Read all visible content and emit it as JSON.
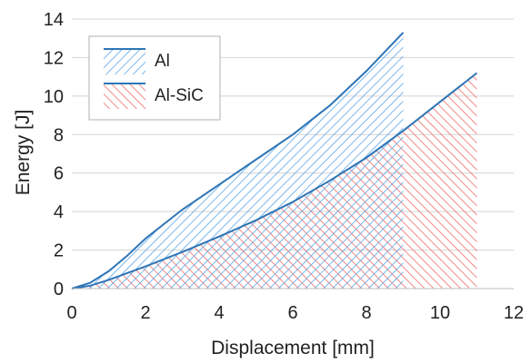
{
  "chart_data": {
    "type": "area",
    "title": "",
    "xlabel": "Displacement [mm]",
    "ylabel": "Energy [J]",
    "xlim": [
      0,
      12
    ],
    "ylim": [
      0,
      14
    ],
    "xticks": [
      0,
      2,
      4,
      6,
      8,
      10,
      12
    ],
    "yticks": [
      0,
      2,
      4,
      6,
      8,
      10,
      12,
      14
    ],
    "grid": "horizontal",
    "legend_position": "top-left",
    "series": [
      {
        "name": "Al",
        "color": "#2e75b6",
        "hatch_color": "#5aa6e8",
        "hatch": "diagonal-down",
        "x": [
          0,
          0.5,
          1,
          1.5,
          2,
          3,
          4,
          5,
          6,
          7,
          8,
          9
        ],
        "y": [
          0,
          0.3,
          0.9,
          1.7,
          2.6,
          4.1,
          5.4,
          6.7,
          8.0,
          9.5,
          11.3,
          13.3
        ]
      },
      {
        "name": "Al-SiC",
        "color": "#2e75b6",
        "hatch_color": "#ee6b6b",
        "hatch": "diagonal-up",
        "x": [
          0,
          0.5,
          1,
          2,
          3,
          4,
          5,
          6,
          7,
          8,
          9,
          10,
          11
        ],
        "y": [
          0,
          0.15,
          0.45,
          1.15,
          1.9,
          2.7,
          3.55,
          4.5,
          5.6,
          6.8,
          8.2,
          9.7,
          11.2
        ]
      }
    ]
  }
}
